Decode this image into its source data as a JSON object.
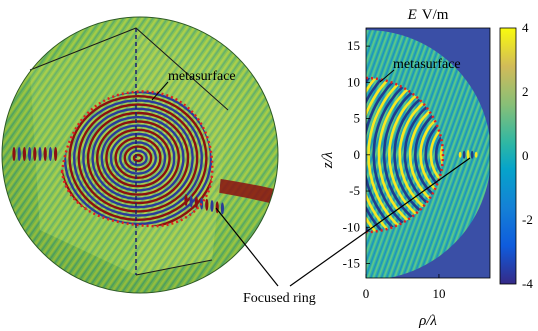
{
  "chart_data": [
    {
      "type": "heatmap",
      "panel": "3D sphere cut-away view",
      "annotations": [
        "metasurface",
        "Focused ring"
      ]
    },
    {
      "type": "heatmap",
      "panel": "2D cross-section",
      "title": "E V/m",
      "title_parts": {
        "symbol": "E",
        "unit": "V/m"
      },
      "xlabel": "ρ/λ",
      "ylabel": "z/λ",
      "xlim": [
        0,
        17
      ],
      "ylim": [
        -17,
        17.5
      ],
      "xticks": [
        "0",
        "10"
      ],
      "yticks": [
        "15",
        "10",
        "5",
        "0",
        "-5",
        "-10",
        "-15"
      ],
      "colorbar": {
        "range": [
          -4,
          4
        ],
        "ticks": [
          "4",
          "2",
          "0",
          "-2",
          "-4"
        ],
        "colormap": "parula"
      },
      "sphere_radius_lambda": 17,
      "metasurface_radius_lambda": 10.5,
      "focus_point_lambda": {
        "rho": 14,
        "z": 0
      },
      "annotations": [
        "metasurface",
        "Focused ring"
      ],
      "grid": false
    }
  ],
  "labels": {
    "metasurface_3d": "metasurface",
    "metasurface_2d": "metasurface",
    "focused_ring": "Focused ring",
    "title_symbol": "E",
    "title_unit": "V/m"
  },
  "colors": {
    "background_field": "#3a50a8",
    "field_mid": "#35b779",
    "field_yellow": "#f9e721",
    "field_dark": "#1f3b8a",
    "sphere_green": "#7fc44a",
    "ring_red": "#8b1010",
    "metasurface_dots": "#e02020"
  }
}
